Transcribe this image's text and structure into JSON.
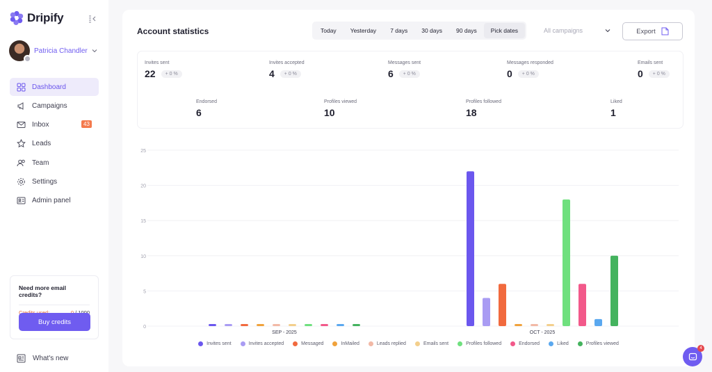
{
  "app": {
    "name": "Dripify"
  },
  "user": {
    "name": "Patricia Chandler"
  },
  "nav": [
    {
      "label": "Dashboard",
      "icon": "dashboard-icon",
      "active": true
    },
    {
      "label": "Campaigns",
      "icon": "megaphone-icon"
    },
    {
      "label": "Inbox",
      "icon": "mail-icon",
      "badge": "43"
    },
    {
      "label": "Leads",
      "icon": "star-icon"
    },
    {
      "label": "Team",
      "icon": "team-icon"
    },
    {
      "label": "Settings",
      "icon": "gear-icon"
    },
    {
      "label": "Admin panel",
      "icon": "id-card-icon"
    }
  ],
  "credits": {
    "title": "Need more email credits?",
    "used_label": "Credits used:",
    "used": "0",
    "total": "/ 1000",
    "buy_label": "Buy credits"
  },
  "whats_new": "What's new",
  "header": {
    "title": "Account statistics",
    "ranges": [
      "Today",
      "Yesterday",
      "7 days",
      "30 days",
      "90 days",
      "Pick dates"
    ],
    "active_range": "Pick dates",
    "campaign_placeholder": "All campaigns",
    "export_label": "Export"
  },
  "stats_row1": [
    {
      "label": "Invites sent",
      "value": "22",
      "delta": "+ 0 %"
    },
    {
      "label": "Invites accepted",
      "value": "4",
      "delta": "+ 0 %"
    },
    {
      "label": "Messages sent",
      "value": "6",
      "delta": "+ 0 %"
    },
    {
      "label": "Messages responded",
      "value": "0",
      "delta": "+ 0 %"
    },
    {
      "label": "Emails sent",
      "value": "0",
      "delta": "+ 0 %"
    }
  ],
  "stats_row2": [
    {
      "label": "Endorsed",
      "value": "6"
    },
    {
      "label": "Profiles viewed",
      "value": "10"
    },
    {
      "label": "Profiles followed",
      "value": "18"
    },
    {
      "label": "Liked",
      "value": "1"
    }
  ],
  "help_badge": "4",
  "chart_data": {
    "type": "bar",
    "categories": [
      "SEP - 2025",
      "OCT - 2025"
    ],
    "ylim": [
      0,
      25
    ],
    "yticks": [
      0,
      5,
      10,
      15,
      20,
      25
    ],
    "grid": true,
    "legend_position": "bottom",
    "series": [
      {
        "name": "Invites sent",
        "color": "#6b57ee",
        "values": [
          0,
          22
        ]
      },
      {
        "name": "Invites accepted",
        "color": "#a99cf3",
        "values": [
          0,
          4
        ]
      },
      {
        "name": "Messaged",
        "color": "#f16a3e",
        "values": [
          0,
          6
        ]
      },
      {
        "name": "InMailed",
        "color": "#f0a23b",
        "values": [
          0,
          0
        ]
      },
      {
        "name": "Leads replied",
        "color": "#f2b9a6",
        "values": [
          0,
          0
        ]
      },
      {
        "name": "Emails sent",
        "color": "#f3cf8c",
        "values": [
          0,
          0
        ]
      },
      {
        "name": "Profiles followed",
        "color": "#6fe07e",
        "values": [
          0,
          18
        ]
      },
      {
        "name": "Endorsed",
        "color": "#f2598a",
        "values": [
          0,
          6
        ]
      },
      {
        "name": "Liked",
        "color": "#5aa8ef",
        "values": [
          0,
          1
        ]
      },
      {
        "name": "Profiles viewed",
        "color": "#44b35e",
        "values": [
          0,
          10
        ]
      }
    ]
  }
}
